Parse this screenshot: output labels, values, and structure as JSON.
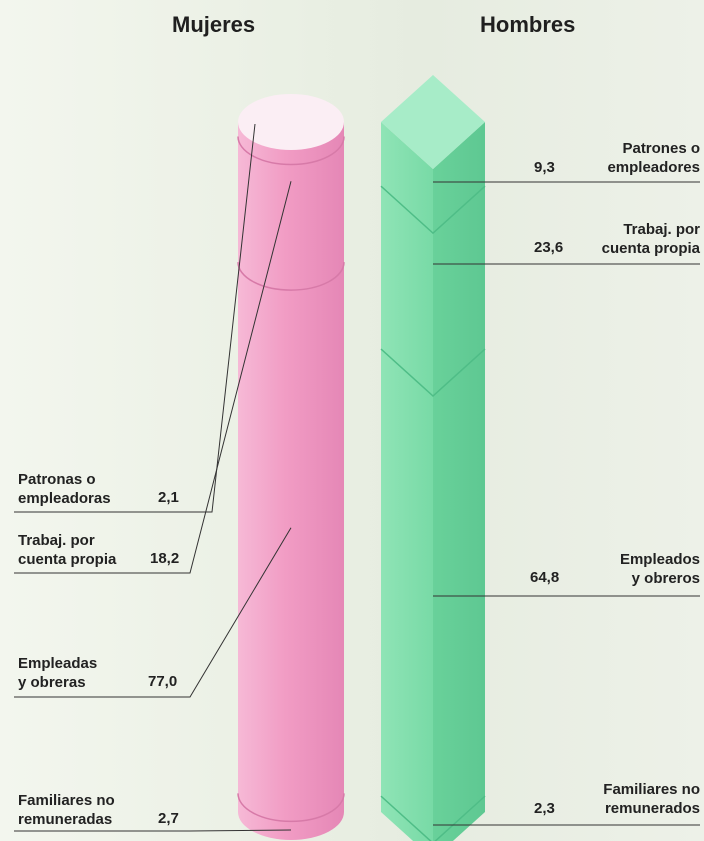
{
  "chart_data": {
    "type": "bar",
    "subtype": "stacked-100",
    "categories": [
      "Mujeres",
      "Hombres"
    ],
    "series": [
      {
        "name": "Mujeres",
        "color": "#ee9cc4",
        "segments": [
          {
            "label": "Patronas o empleadoras",
            "value": 2.1,
            "display": "2,1"
          },
          {
            "label": "Trabaj. por cuenta propia",
            "value": 18.2,
            "display": "18,2"
          },
          {
            "label": "Empleadas y obreras",
            "value": 77.0,
            "display": "77,0"
          },
          {
            "label": "Familiares no remuneradas",
            "value": 2.7,
            "display": "2,7"
          }
        ]
      },
      {
        "name": "Hombres",
        "color": "#72dba3",
        "segments": [
          {
            "label": "Patrones o empleadores",
            "value": 9.3,
            "display": "9,3"
          },
          {
            "label": "Trabaj. por cuenta propia",
            "value": 23.6,
            "display": "23,6"
          },
          {
            "label": "Empleados y obreros",
            "value": 64.8,
            "display": "64,8"
          },
          {
            "label": "Familiares no remunerados",
            "value": 2.3,
            "display": "2,3"
          }
        ]
      }
    ],
    "title": "",
    "xlabel": "",
    "ylabel": "",
    "unit": "%",
    "legend": "none",
    "grid": false
  },
  "labels": {
    "mujeres_header": "Mujeres",
    "hombres_header": "Hombres",
    "m_seg1_line1": "Patronas o",
    "m_seg1_line2": "empleadoras",
    "m_seg2_line1": "Trabaj. por",
    "m_seg2_line2": "cuenta propia",
    "m_seg3_line1": "Empleadas",
    "m_seg3_line2": "y obreras",
    "m_seg4_line1": "Familiares no",
    "m_seg4_line2": "remuneradas",
    "h_seg1_line1": "Patrones o",
    "h_seg1_line2": "empleadores",
    "h_seg2_line1": "Trabaj. por",
    "h_seg2_line2": "cuenta propia",
    "h_seg3_line1": "Empleados",
    "h_seg3_line2": "y obreros",
    "h_seg4_line1": "Familiares no",
    "h_seg4_line2": "remunerados"
  }
}
